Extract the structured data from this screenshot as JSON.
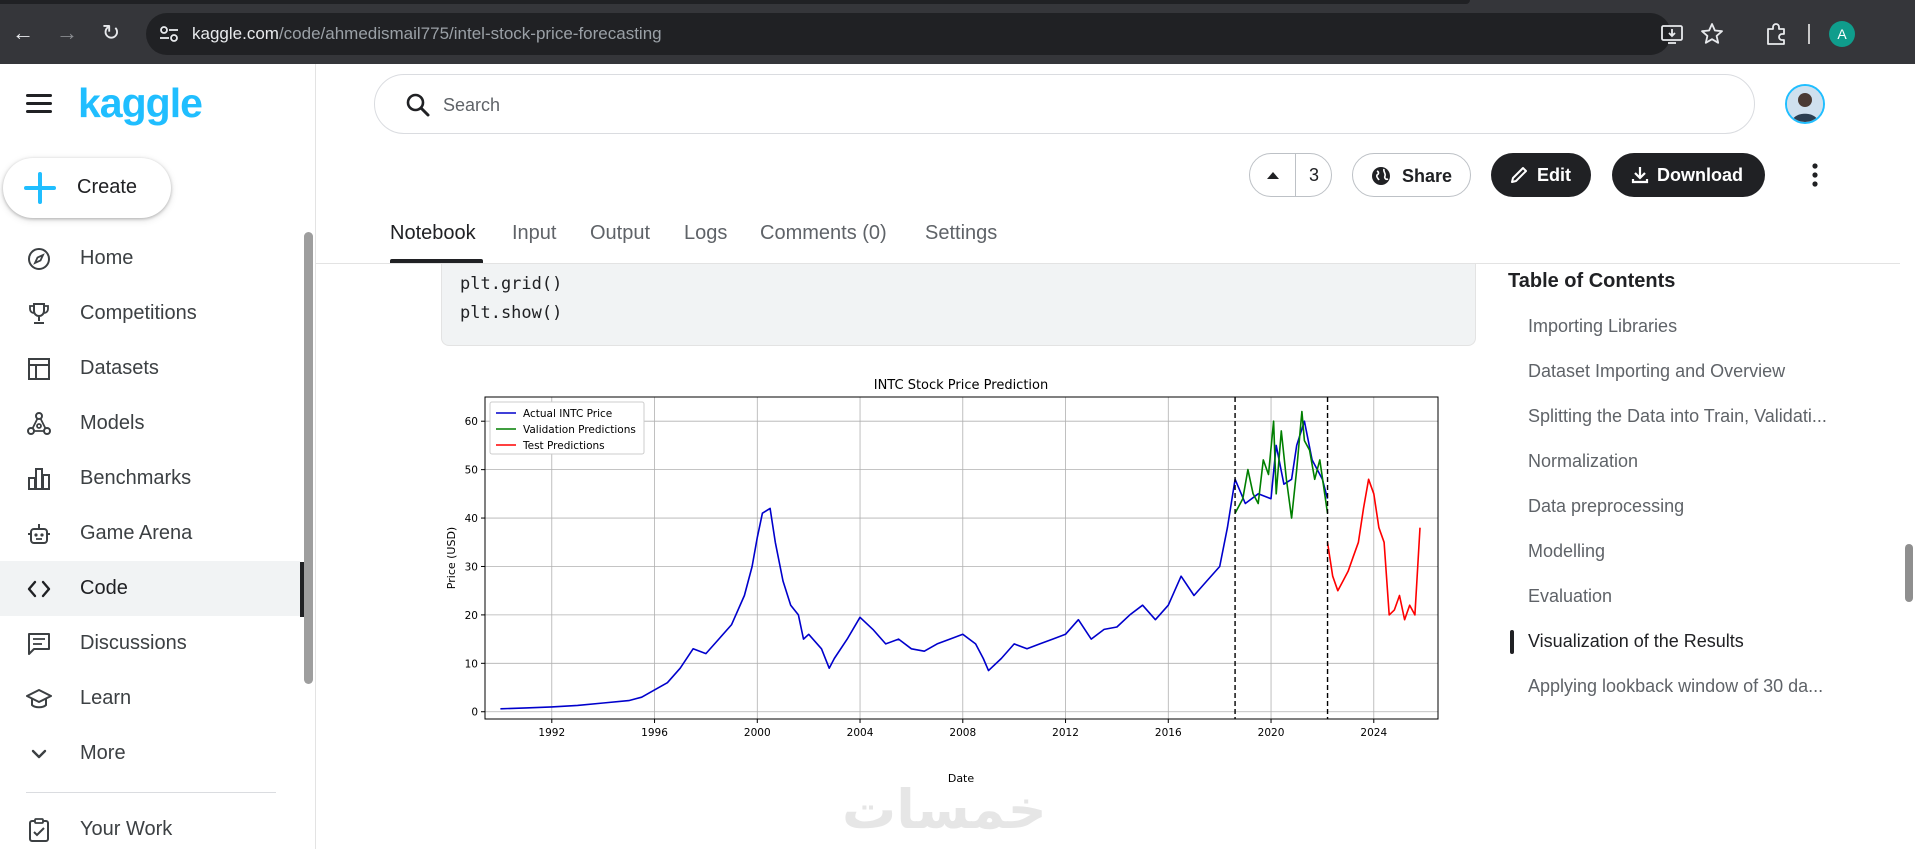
{
  "browser": {
    "url_domain": "kaggle.com",
    "url_path": "/code/ahmedismail775/intel-stock-price-forecasting",
    "profile_initial": "A"
  },
  "sidebar": {
    "logo": "kaggle",
    "create_label": "Create",
    "items": [
      {
        "label": "Home",
        "icon": "compass-icon"
      },
      {
        "label": "Competitions",
        "icon": "trophy-icon"
      },
      {
        "label": "Datasets",
        "icon": "table-icon"
      },
      {
        "label": "Models",
        "icon": "models-icon"
      },
      {
        "label": "Benchmarks",
        "icon": "bar-chart-icon"
      },
      {
        "label": "Game Arena",
        "icon": "robot-icon"
      },
      {
        "label": "Code",
        "icon": "code-icon",
        "active": true
      },
      {
        "label": "Discussions",
        "icon": "discussion-icon"
      },
      {
        "label": "Learn",
        "icon": "graduation-cap-icon"
      },
      {
        "label": "More",
        "icon": "chevron-down-icon"
      },
      {
        "label": "Your Work",
        "icon": "clipboard-icon"
      }
    ]
  },
  "header": {
    "search_placeholder": "Search",
    "vote_count": "3",
    "share_label": "Share",
    "edit_label": "Edit",
    "download_label": "Download"
  },
  "tabs": [
    {
      "label": "Notebook",
      "active": true
    },
    {
      "label": "Input"
    },
    {
      "label": "Output"
    },
    {
      "label": "Logs"
    },
    {
      "label": "Comments (0)"
    },
    {
      "label": "Settings"
    }
  ],
  "code": {
    "lines": [
      "plt.grid()",
      "plt.show()"
    ]
  },
  "toc": {
    "title": "Table of Contents",
    "items": [
      {
        "label": "Importing Libraries"
      },
      {
        "label": "Dataset Importing and Overview"
      },
      {
        "label": "Splitting the Data into Train, Validati..."
      },
      {
        "label": "Normalization"
      },
      {
        "label": "Data preprocessing"
      },
      {
        "label": "Modelling"
      },
      {
        "label": "Evaluation"
      },
      {
        "label": "Visualization of the Results",
        "active": true
      },
      {
        "label": "Applying lookback window of 30 da..."
      }
    ]
  },
  "watermark": "خمسات",
  "chart_data": {
    "type": "line",
    "title": "INTC Stock Price Prediction",
    "xlabel": "Date",
    "ylabel": "Price (USD)",
    "xlim": [
      1989.4,
      2026.5
    ],
    "ylim": [
      -1.5,
      65
    ],
    "xticks": [
      1992,
      1996,
      2000,
      2004,
      2008,
      2012,
      2016,
      2020,
      2024
    ],
    "yticks": [
      0,
      10,
      20,
      30,
      40,
      50,
      60
    ],
    "grid": true,
    "legend_position": "top-left",
    "vlines": [
      2018.6,
      2022.2
    ],
    "series": [
      {
        "name": "Actual INTC Price",
        "color": "#0000cc",
        "x": [
          1990.0,
          1991.0,
          1992.0,
          1993.0,
          1994.0,
          1995.0,
          1995.5,
          1996.0,
          1996.5,
          1997.0,
          1997.5,
          1998.0,
          1998.5,
          1999.0,
          1999.5,
          1999.8,
          2000.0,
          2000.2,
          2000.5,
          2000.7,
          2001.0,
          2001.3,
          2001.6,
          2001.8,
          2002.0,
          2002.5,
          2002.8,
          2003.0,
          2003.5,
          2004.0,
          2004.5,
          2005.0,
          2005.5,
          2006.0,
          2006.5,
          2007.0,
          2007.5,
          2008.0,
          2008.5,
          2008.8,
          2009.0,
          2009.5,
          2010.0,
          2010.5,
          2011.0,
          2011.5,
          2012.0,
          2012.5,
          2013.0,
          2013.5,
          2014.0,
          2014.5,
          2015.0,
          2015.5,
          2016.0,
          2016.5,
          2017.0,
          2017.5,
          2018.0,
          2018.3,
          2018.6,
          2019.0,
          2019.5,
          2020.0,
          2020.2,
          2020.5,
          2020.8,
          2021.0,
          2021.3,
          2021.6,
          2022.0,
          2022.2
        ],
        "values": [
          0.6,
          0.8,
          1.0,
          1.3,
          1.8,
          2.3,
          3.0,
          4.5,
          6.0,
          9.0,
          13.0,
          12.0,
          15.0,
          18.0,
          24.0,
          30.0,
          36.0,
          41.0,
          42.0,
          35.0,
          27.0,
          22.0,
          20.0,
          15.0,
          16.0,
          13.0,
          9.0,
          11.0,
          15.0,
          19.5,
          17.0,
          14.0,
          15.0,
          13.0,
          12.5,
          14.0,
          15.0,
          16.0,
          14.0,
          11.0,
          8.5,
          11.0,
          14.0,
          13.0,
          14.0,
          15.0,
          16.0,
          19.0,
          15.0,
          17.0,
          17.5,
          20.0,
          22.0,
          19.0,
          22.0,
          28.0,
          24.0,
          27.0,
          30.0,
          38.0,
          48.0,
          43.0,
          45.0,
          44.0,
          55.0,
          47.0,
          48.0,
          55.0,
          60.0,
          52.0,
          48.0,
          44.0
        ]
      },
      {
        "name": "Validation Predictions",
        "color": "#007f00",
        "x": [
          2018.6,
          2018.9,
          2019.1,
          2019.3,
          2019.5,
          2019.7,
          2019.9,
          2020.1,
          2020.2,
          2020.4,
          2020.6,
          2020.8,
          2021.0,
          2021.2,
          2021.3,
          2021.5,
          2021.7,
          2021.9,
          2022.2
        ],
        "values": [
          41.0,
          44.0,
          50.0,
          45.0,
          43.0,
          52.0,
          49.0,
          60.0,
          45.0,
          58.0,
          48.0,
          40.0,
          50.0,
          62.0,
          56.0,
          54.0,
          48.0,
          52.0,
          41.0
        ]
      },
      {
        "name": "Test Predictions",
        "color": "#ff0000",
        "x": [
          2022.2,
          2022.4,
          2022.6,
          2022.8,
          2023.0,
          2023.2,
          2023.4,
          2023.6,
          2023.8,
          2024.0,
          2024.2,
          2024.4,
          2024.6,
          2024.8,
          2025.0,
          2025.2,
          2025.4,
          2025.6,
          2025.8
        ],
        "values": [
          35.0,
          28.0,
          25.0,
          27.0,
          29.0,
          32.0,
          35.0,
          42.0,
          48.0,
          45.0,
          38.0,
          35.0,
          20.0,
          21.0,
          24.0,
          19.0,
          22.0,
          20.0,
          38.0
        ]
      }
    ]
  }
}
